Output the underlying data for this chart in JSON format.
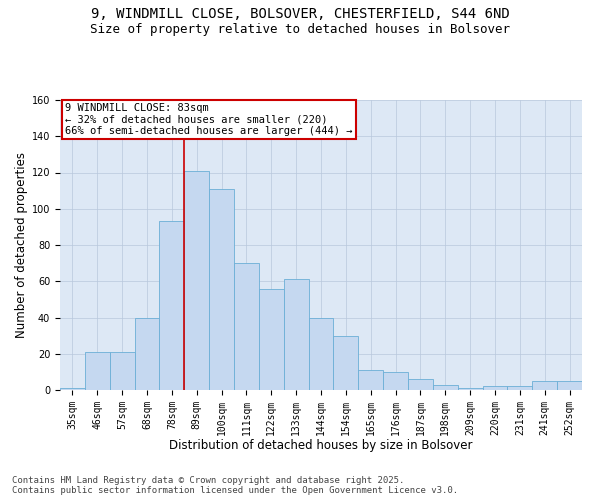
{
  "title_line1": "9, WINDMILL CLOSE, BOLSOVER, CHESTERFIELD, S44 6ND",
  "title_line2": "Size of property relative to detached houses in Bolsover",
  "xlabel": "Distribution of detached houses by size in Bolsover",
  "ylabel": "Number of detached properties",
  "categories": [
    "35sqm",
    "46sqm",
    "57sqm",
    "68sqm",
    "78sqm",
    "89sqm",
    "100sqm",
    "111sqm",
    "122sqm",
    "133sqm",
    "144sqm",
    "154sqm",
    "165sqm",
    "176sqm",
    "187sqm",
    "198sqm",
    "209sqm",
    "220sqm",
    "231sqm",
    "241sqm",
    "252sqm"
  ],
  "values": [
    1,
    21,
    21,
    40,
    93,
    121,
    111,
    70,
    56,
    61,
    40,
    30,
    11,
    10,
    6,
    3,
    1,
    2,
    2,
    5,
    5
  ],
  "bar_color": "#c5d8f0",
  "bar_edge_color": "#6baed6",
  "vertical_line_x": 4.5,
  "annotation_text": "9 WINDMILL CLOSE: 83sqm\n← 32% of detached houses are smaller (220)\n66% of semi-detached houses are larger (444) →",
  "annotation_box_color": "#ffffff",
  "annotation_box_edge": "#cc0000",
  "annotation_text_color": "#000000",
  "vline_color": "#cc0000",
  "ylim": [
    0,
    160
  ],
  "yticks": [
    0,
    20,
    40,
    60,
    80,
    100,
    120,
    140,
    160
  ],
  "background_color": "#ffffff",
  "plot_bg_color": "#dde8f5",
  "grid_color": "#b8c8dc",
  "footer": "Contains HM Land Registry data © Crown copyright and database right 2025.\nContains public sector information licensed under the Open Government Licence v3.0.",
  "title_fontsize": 10,
  "subtitle_fontsize": 9,
  "axis_label_fontsize": 8.5,
  "tick_fontsize": 7,
  "annotation_fontsize": 7.5,
  "footer_fontsize": 6.5
}
